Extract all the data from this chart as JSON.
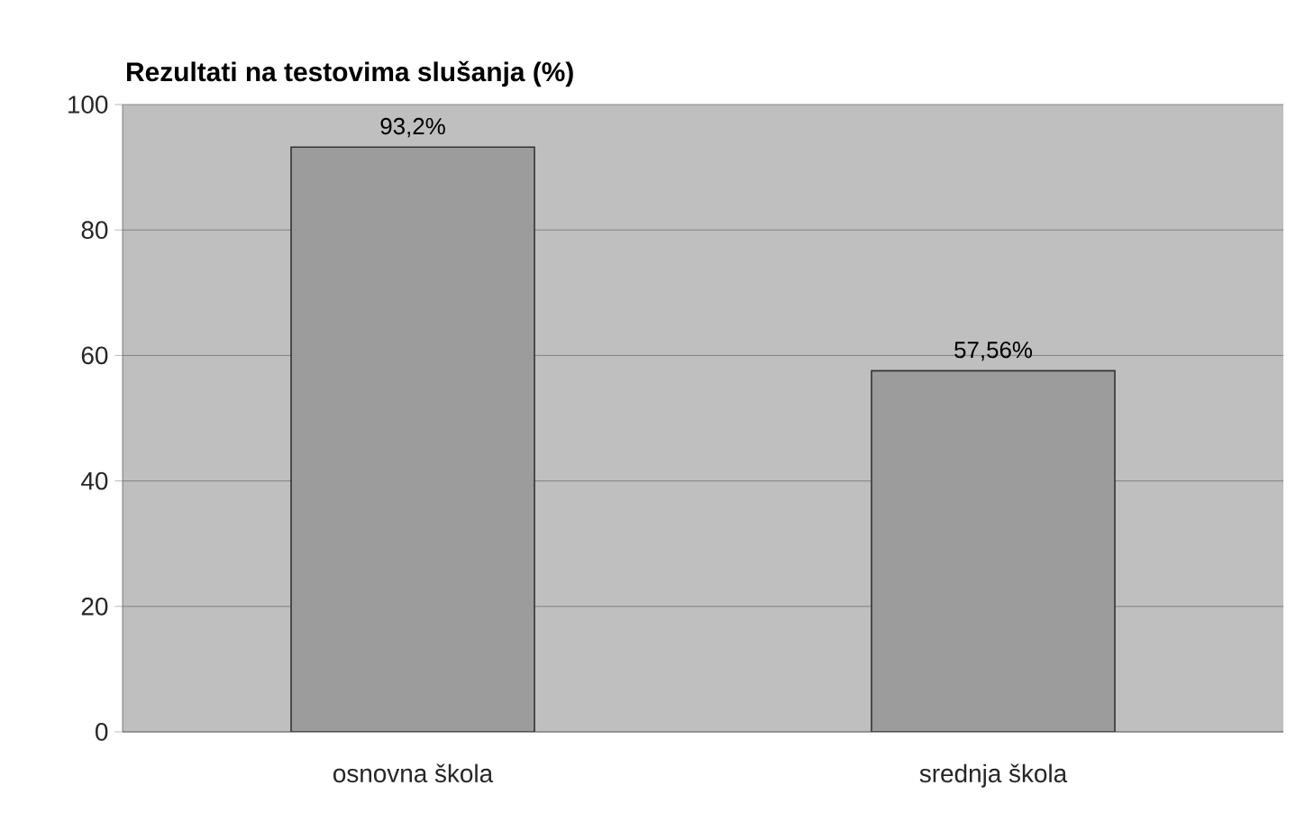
{
  "chart_data": {
    "type": "bar",
    "title": "Rezultati na testovima slušanja (%)",
    "categories": [
      "osnovna škola",
      "srednja škola"
    ],
    "values": [
      93.2,
      57.56
    ],
    "value_labels": [
      "93,2%",
      "57,56%"
    ],
    "color": "#9c9c9c",
    "ylim": [
      0,
      100
    ],
    "yticks": [
      0,
      20,
      40,
      60,
      80,
      100
    ],
    "grid": "y"
  }
}
